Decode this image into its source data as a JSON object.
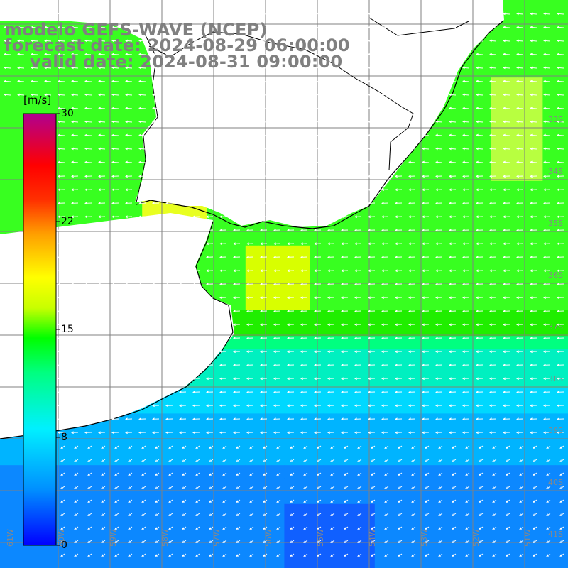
{
  "titles": {
    "line1": "modelo GEFS-WAVE (NCEP)",
    "line2": "forecast date: 2024-08-29 06:00:00",
    "line3": "valid date: 2024-08-31 09:00:00"
  },
  "colorbar": {
    "unit": "[m/s]",
    "ticks": [
      "30",
      "22",
      "15",
      "8",
      "0"
    ],
    "stops": [
      "#0000ff",
      "#0080ff",
      "#00e0ff",
      "#00ff80",
      "#00ff00",
      "#d0ff00",
      "#ffff00",
      "#ffa000",
      "#ff4000",
      "#ff0000",
      "#d0206a",
      "#a00090"
    ]
  },
  "grid": {
    "lat_labels": [
      "33S",
      "34S",
      "35S",
      "36S",
      "37S",
      "38S",
      "39S",
      "40S",
      "41S"
    ],
    "lon_labels": [
      "61W",
      "60W",
      "59W",
      "58W",
      "57W",
      "56W",
      "55W",
      "54W",
      "53W",
      "52W",
      "51W"
    ]
  },
  "colors": {
    "land": "#ffffff",
    "grid": "#808080",
    "arrows": "#ffffff",
    "coast": "#000000"
  }
}
